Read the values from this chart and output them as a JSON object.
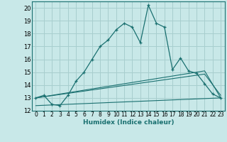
{
  "xlabel": "Humidex (Indice chaleur)",
  "background_color": "#c8e8e8",
  "grid_color": "#a8cece",
  "line_color": "#1a7070",
  "xlim": [
    -0.5,
    23.5
  ],
  "ylim": [
    12,
    20.5
  ],
  "yticks": [
    12,
    13,
    14,
    15,
    16,
    17,
    18,
    19,
    20
  ],
  "xticks": [
    0,
    1,
    2,
    3,
    4,
    5,
    6,
    7,
    8,
    9,
    10,
    11,
    12,
    13,
    14,
    15,
    16,
    17,
    18,
    19,
    20,
    21,
    22,
    23
  ],
  "series1_x": [
    0,
    1,
    2,
    3,
    4,
    5,
    6,
    7,
    8,
    9,
    10,
    11,
    12,
    13,
    14,
    15,
    16,
    17,
    18,
    19,
    20,
    21,
    22,
    23
  ],
  "series1_y": [
    13.0,
    13.2,
    12.5,
    12.4,
    13.2,
    14.3,
    15.0,
    16.0,
    17.0,
    17.5,
    18.3,
    18.8,
    18.5,
    17.3,
    20.2,
    18.8,
    18.5,
    15.2,
    16.1,
    15.1,
    14.9,
    14.1,
    13.3,
    13.0
  ],
  "series2_x": [
    0,
    21,
    23
  ],
  "series2_y": [
    13.0,
    15.1,
    13.0
  ],
  "series3_x": [
    0,
    21,
    23
  ],
  "series3_y": [
    13.0,
    14.85,
    13.2
  ],
  "series4_x": [
    0,
    23
  ],
  "series4_y": [
    12.4,
    13.0
  ]
}
